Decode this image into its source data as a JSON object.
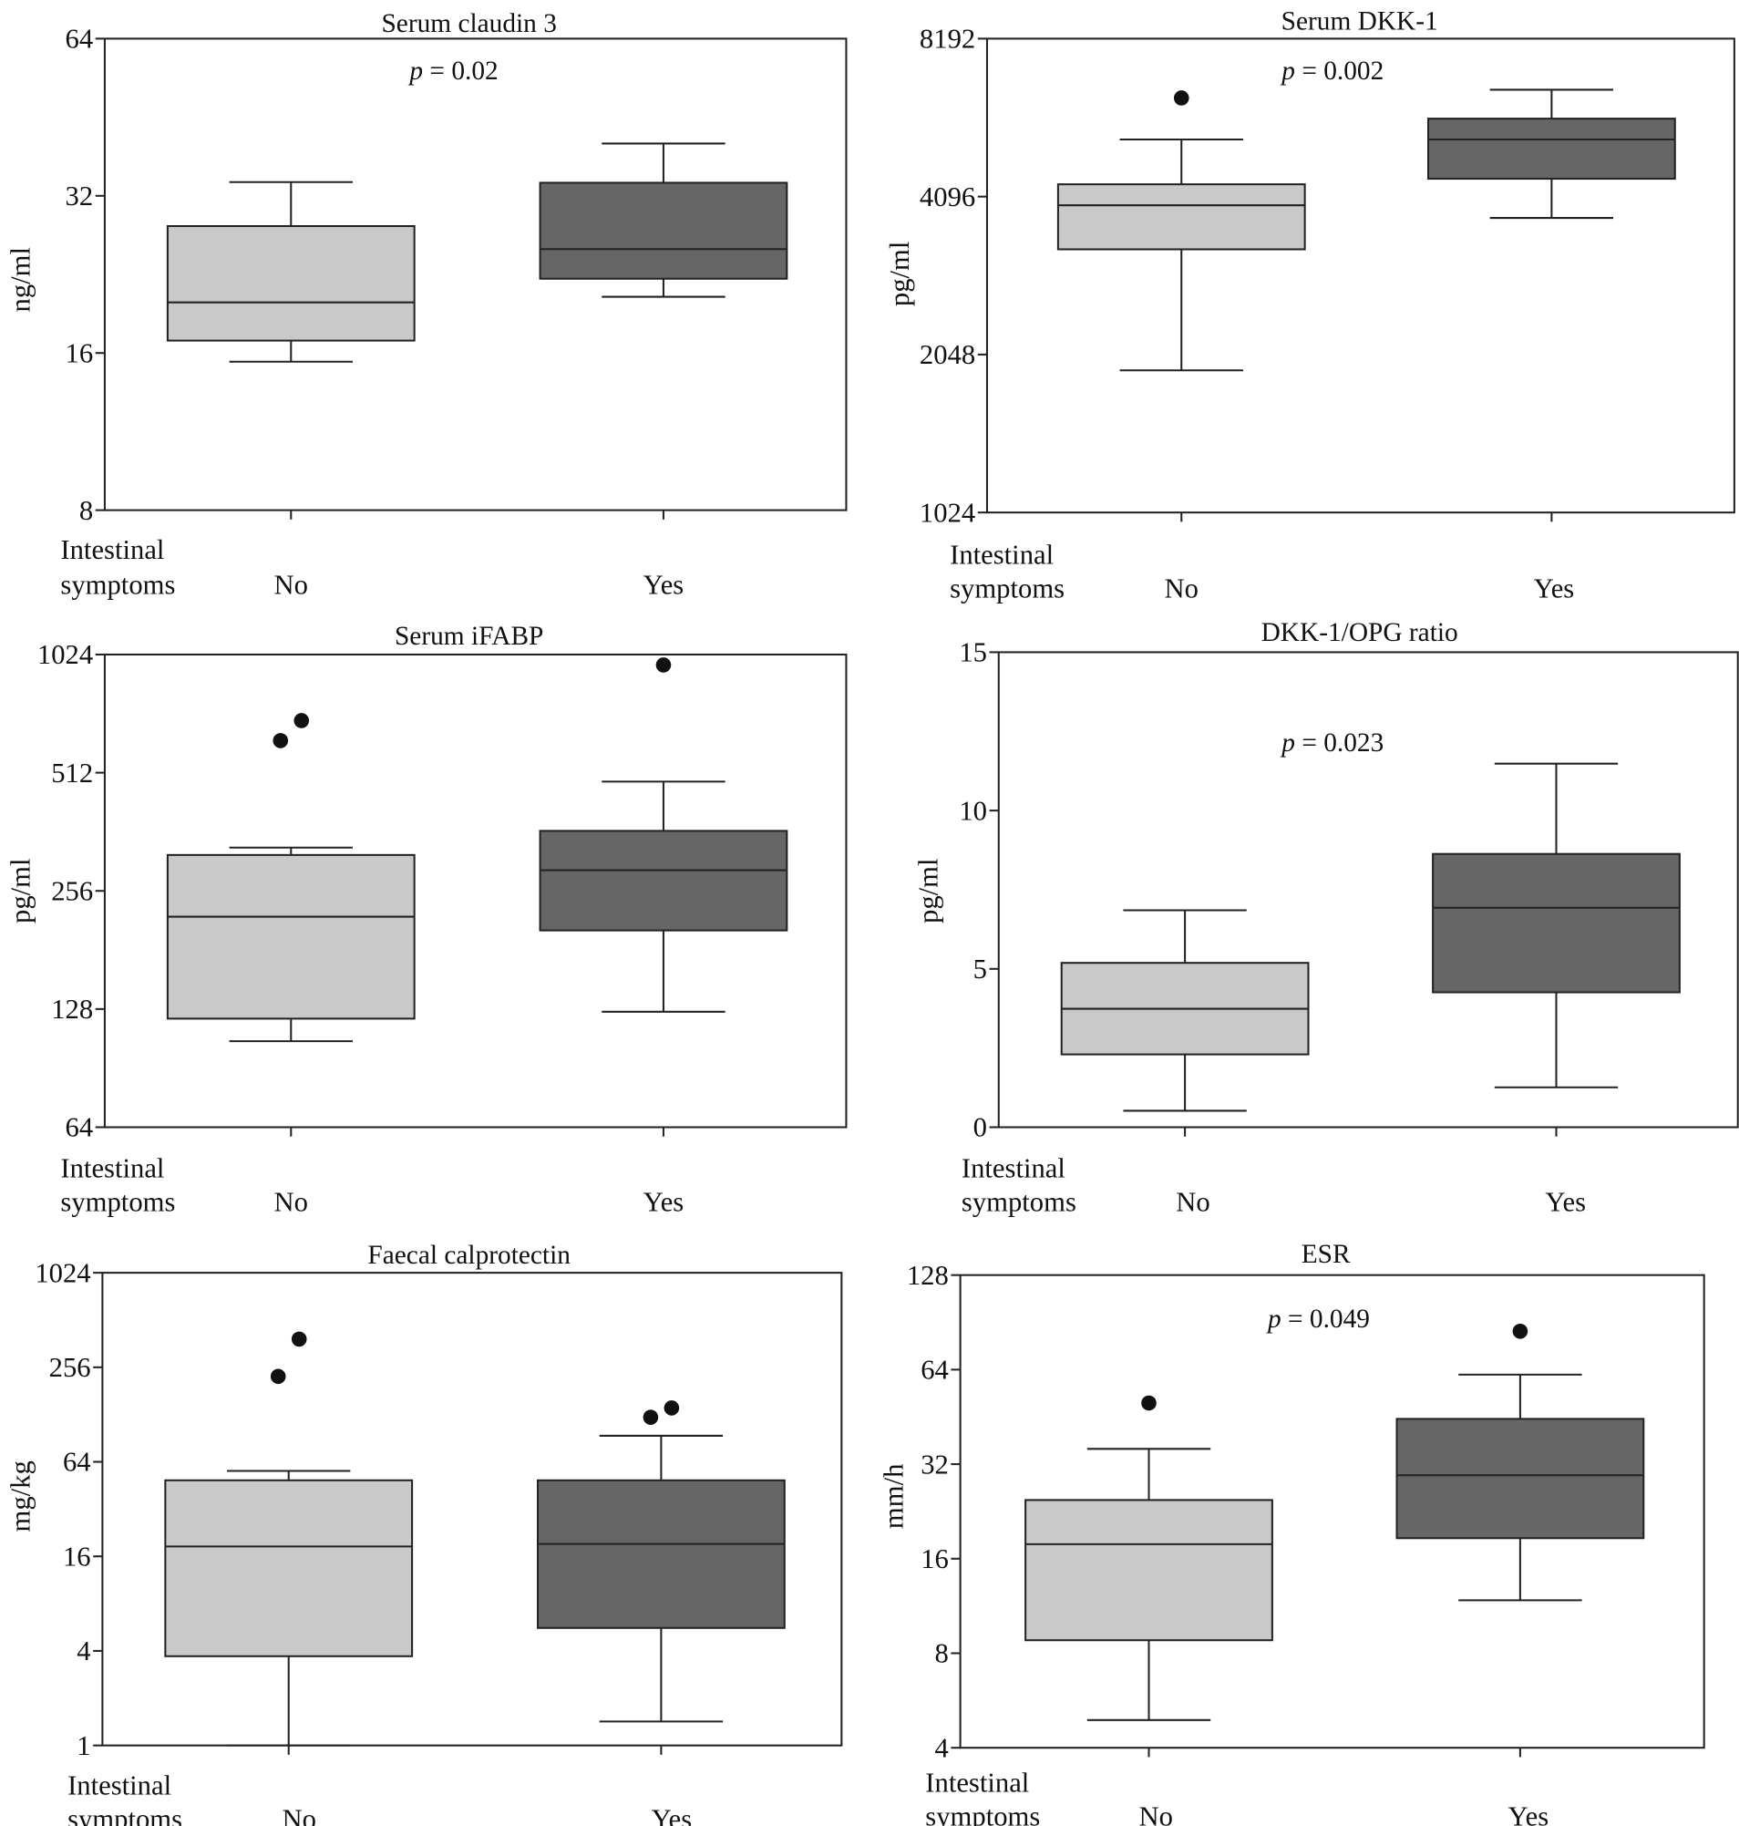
{
  "figure": {
    "legend": "none",
    "colors": {
      "no_group": "#c9c9c9",
      "yes_group": "#666666",
      "outlier": "#111111"
    }
  },
  "chart_data": [
    {
      "type": "box",
      "title": "Serum claudin 3",
      "ylabel": "ng/ml",
      "p_value": "p = 0.02",
      "yscale": "log2",
      "ylim": [
        8,
        64
      ],
      "yticks": [
        8,
        16,
        32,
        64
      ],
      "xlabel_lines": [
        "Intestinal",
        "symptoms"
      ],
      "categories": [
        "No",
        "Yes"
      ],
      "boxes": [
        {
          "min": 15.4,
          "q1": 16.9,
          "median": 20.0,
          "q3": 28.0,
          "max": 34.0,
          "outliers": []
        },
        {
          "min": 20.5,
          "q1": 22.2,
          "median": 25.3,
          "q3": 33.9,
          "max": 40.3,
          "outliers": []
        }
      ]
    },
    {
      "type": "box",
      "title": "Serum DKK-1",
      "ylabel": "pg/ml",
      "p_value": "p = 0.002",
      "yscale": "log2",
      "ylim": [
        1024,
        8192
      ],
      "yticks": [
        1024,
        2048,
        4096,
        8192
      ],
      "xlabel_lines": [
        "Intestinal",
        "symptoms"
      ],
      "categories": [
        "No",
        "Yes"
      ],
      "boxes": [
        {
          "min": 1911,
          "q1": 3250,
          "median": 3943,
          "q3": 4323,
          "max": 5263,
          "outliers": [
            6314
          ]
        },
        {
          "min": 3730,
          "q1": 4430,
          "median": 5263,
          "q3": 5767,
          "max": 6547,
          "outliers": []
        }
      ]
    },
    {
      "type": "box",
      "title": "Serum iFABP",
      "ylabel": "pg/ml",
      "p_value": "",
      "yscale": "log2",
      "ylim": [
        64,
        1024
      ],
      "yticks": [
        64,
        128,
        256,
        512,
        1024
      ],
      "xlabel_lines": [
        "Intestinal",
        "symptoms"
      ],
      "categories": [
        "No",
        "Yes"
      ],
      "boxes": [
        {
          "min": 106,
          "q1": 121,
          "median": 220,
          "q3": 316,
          "max": 330,
          "outliers": [
            618,
            695
          ]
        },
        {
          "min": 126,
          "q1": 203,
          "median": 289,
          "q3": 364,
          "max": 486,
          "outliers": [
            963
          ]
        }
      ]
    },
    {
      "type": "box",
      "title": "DKK-1/OPG ratio",
      "ylabel": "pg/ml",
      "p_value": "p = 0.023",
      "yscale": "linear",
      "ylim": [
        0,
        15
      ],
      "yticks": [
        0,
        5,
        10,
        15
      ],
      "xlabel_lines": [
        "Intestinal",
        "symptoms"
      ],
      "categories": [
        "No",
        "Yes"
      ],
      "boxes": [
        {
          "min": 0.52,
          "q1": 2.3,
          "median": 3.74,
          "q3": 5.19,
          "max": 6.85,
          "outliers": []
        },
        {
          "min": 1.26,
          "q1": 4.26,
          "median": 6.93,
          "q3": 8.63,
          "max": 11.48,
          "outliers": []
        }
      ]
    },
    {
      "type": "box",
      "title": "Faecal calprotectin",
      "ylabel": "mg/kg",
      "p_value": "",
      "yscale": "log2",
      "ylim": [
        1,
        1024
      ],
      "yticks": [
        1,
        4,
        16,
        64,
        256,
        1024
      ],
      "xlabel_lines": [
        "Intestinal",
        "symptoms"
      ],
      "categories": [
        "No",
        "Yes"
      ],
      "boxes": [
        {
          "min": 1.0,
          "q1": 3.7,
          "median": 18.5,
          "q3": 48.8,
          "max": 56.0,
          "outliers": [
            224,
            387
          ]
        },
        {
          "min": 1.42,
          "q1": 5.6,
          "median": 19.2,
          "q3": 48.8,
          "max": 93.8,
          "outliers": [
            123,
            141
          ]
        }
      ]
    },
    {
      "type": "box",
      "title": "ESR",
      "ylabel": "mm/h",
      "p_value": "p = 0.049",
      "yscale": "log2",
      "ylim": [
        4,
        128
      ],
      "yticks": [
        4,
        8,
        16,
        32,
        64,
        128
      ],
      "xlabel_lines": [
        "Intestinal",
        "symptoms"
      ],
      "categories": [
        "No",
        "Yes"
      ],
      "boxes": [
        {
          "min": 4.9,
          "q1": 8.8,
          "median": 17.8,
          "q3": 24.6,
          "max": 35.8,
          "outliers": [
            50.1
          ]
        },
        {
          "min": 11.8,
          "q1": 18.6,
          "median": 29.5,
          "q3": 44.6,
          "max": 61.7,
          "outliers": [
            84.8
          ]
        }
      ]
    }
  ]
}
